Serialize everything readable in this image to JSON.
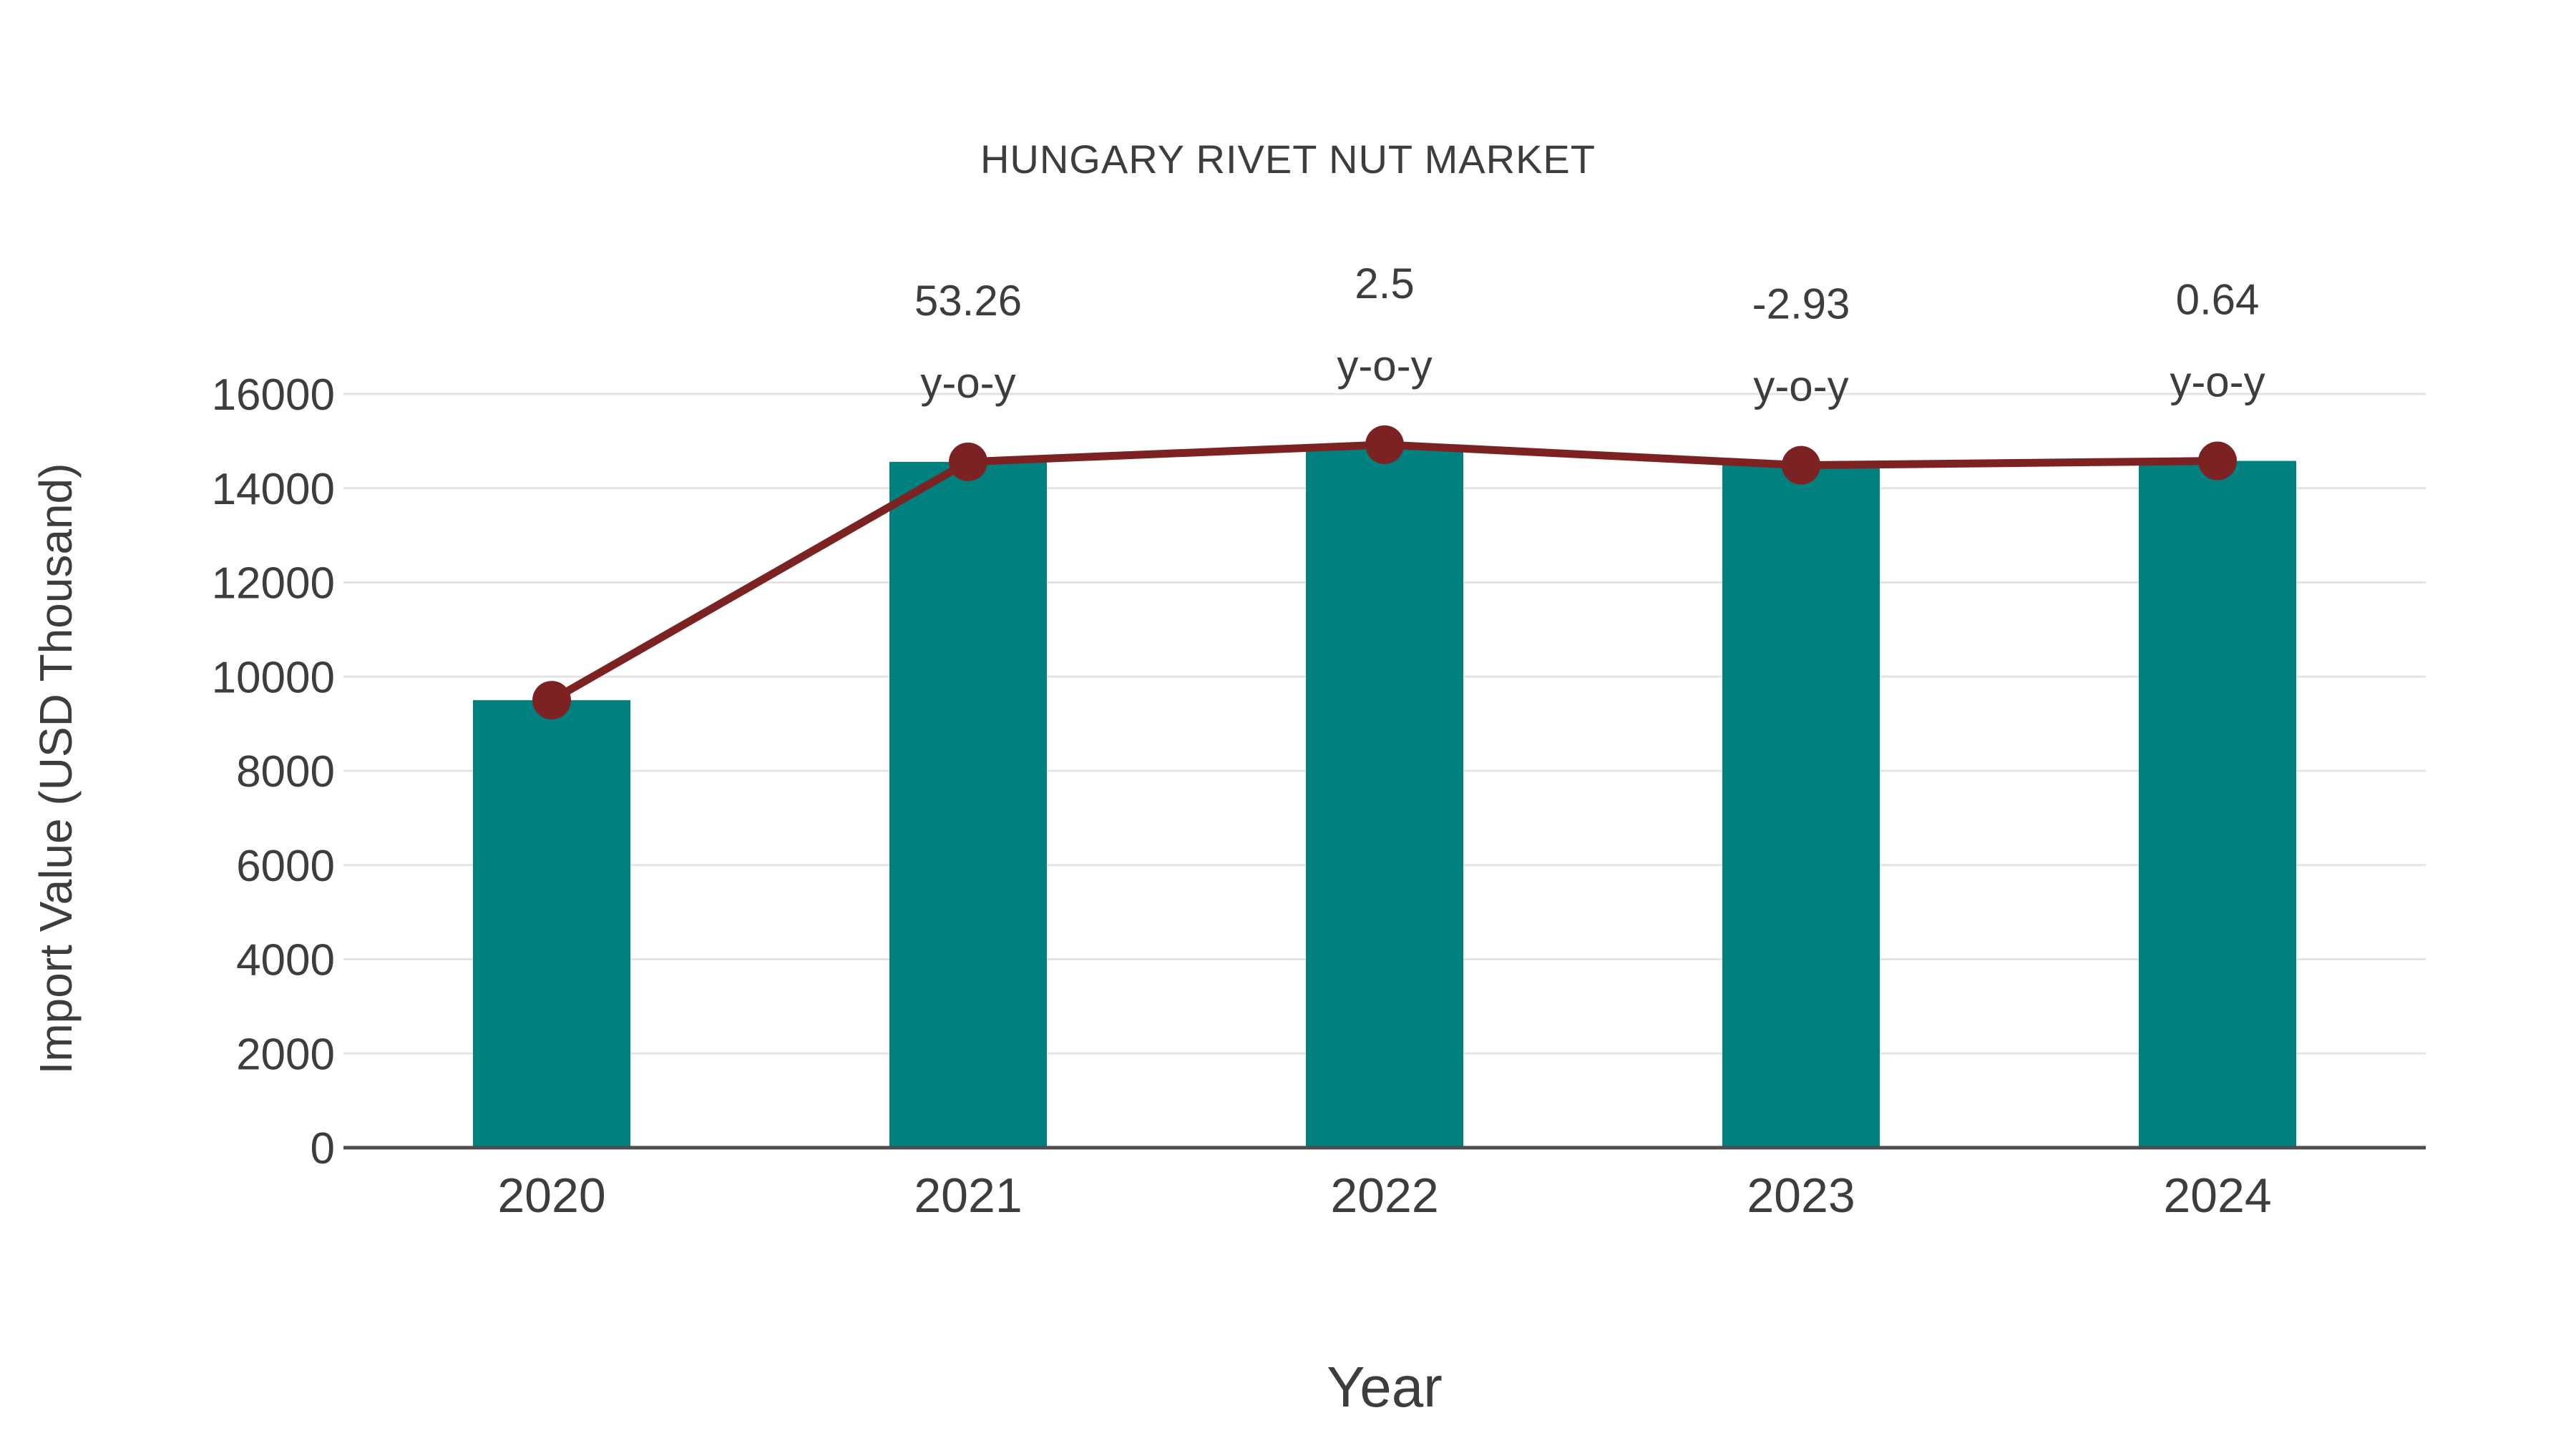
{
  "title": "HUNGARY RIVET NUT MARKET",
  "colors": {
    "bar": "#00807E",
    "line": "#7D2222",
    "marker": "#7D2222",
    "text": "#3D3D3D",
    "grid": "#E4E4E4",
    "axis": "#4D4D4D"
  },
  "chart_data": {
    "type": "bar",
    "title": "HUNGARY RIVET NUT MARKET",
    "xlabel": "Year",
    "ylabel": "Import Value (USD Thousand)",
    "categories": [
      "2020",
      "2021",
      "2022",
      "2023",
      "2024"
    ],
    "series": [
      {
        "name": "Import Value bars",
        "type": "bar",
        "values": [
          9500,
          14560,
          14924,
          14487,
          14580
        ]
      },
      {
        "name": "Import Value trend line",
        "type": "line",
        "values": [
          9500,
          14560,
          14924,
          14487,
          14580
        ]
      }
    ],
    "annotations": [
      {
        "category": "2021",
        "value_label": "53.26",
        "suffix_label": "y-o-y"
      },
      {
        "category": "2022",
        "value_label": "2.5",
        "suffix_label": "y-o-y"
      },
      {
        "category": "2023",
        "value_label": "-2.93",
        "suffix_label": "y-o-y"
      },
      {
        "category": "2024",
        "value_label": "0.64",
        "suffix_label": "y-o-y"
      }
    ],
    "y_ticks": [
      0,
      2000,
      4000,
      6000,
      8000,
      10000,
      12000,
      14000,
      16000
    ],
    "ylim": [
      0,
      16000
    ],
    "grid": "horizontal",
    "legend_position": "none"
  }
}
